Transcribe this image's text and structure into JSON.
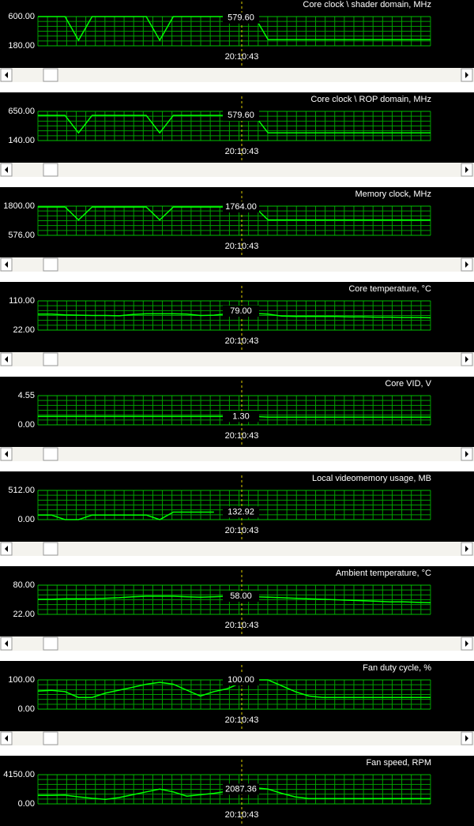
{
  "chart_data": [
    {
      "type": "line",
      "title": "Core clock \\ shader domain, MHz",
      "ylim": [
        180,
        600
      ],
      "yticks": [
        {
          "value": 180,
          "label": "180.00"
        },
        {
          "value": 600,
          "label": "600.00"
        }
      ],
      "time": "20:10:43",
      "cursor_value": {
        "value": 579.6,
        "label": "579.60"
      },
      "color": "#00ff00",
      "values": [
        600,
        600,
        600,
        260,
        600,
        600,
        600,
        600,
        600,
        260,
        600,
        600,
        600,
        600,
        600,
        600,
        600,
        270,
        270,
        270,
        270,
        270,
        270,
        270,
        270,
        270,
        270,
        270,
        270,
        270
      ]
    },
    {
      "type": "line",
      "title": "Core clock \\ ROP domain, MHz",
      "ylim": [
        140,
        650
      ],
      "yticks": [
        {
          "value": 140,
          "label": "140.00"
        },
        {
          "value": 650,
          "label": "650.00"
        }
      ],
      "time": "20:10:43",
      "cursor_value": {
        "value": 579.6,
        "label": "579.60"
      },
      "color": "#00ff00",
      "values": [
        580,
        580,
        580,
        274,
        580,
        580,
        580,
        580,
        580,
        274,
        580,
        580,
        580,
        580,
        580,
        580,
        580,
        274,
        274,
        274,
        274,
        274,
        274,
        274,
        274,
        274,
        274,
        274,
        274,
        274
      ]
    },
    {
      "type": "line",
      "title": "Memory clock, MHz",
      "ylim": [
        576,
        1800
      ],
      "yticks": [
        {
          "value": 576,
          "label": "576.00"
        },
        {
          "value": 1800,
          "label": "1800.00"
        }
      ],
      "time": "20:10:43",
      "cursor_value": {
        "value": 1764,
        "label": "1764.00"
      },
      "color": "#00ff00",
      "values": [
        1764,
        1764,
        1764,
        1220,
        1764,
        1764,
        1764,
        1764,
        1764,
        1220,
        1764,
        1764,
        1764,
        1764,
        1764,
        1764,
        1764,
        1220,
        1220,
        1220,
        1220,
        1220,
        1220,
        1220,
        1220,
        1220,
        1220,
        1220,
        1220,
        1220
      ]
    },
    {
      "type": "line",
      "title": "Core temperature, °C",
      "ylim": [
        22,
        110
      ],
      "yticks": [
        {
          "value": 22,
          "label": "22.00"
        },
        {
          "value": 110,
          "label": "110.00"
        }
      ],
      "time": "20:10:43",
      "cursor_value": {
        "value": 79,
        "label": "79.00"
      },
      "color": "#00ff00",
      "values": [
        70,
        70,
        68,
        67,
        66,
        66,
        65,
        69,
        71,
        71,
        71,
        70,
        66,
        67,
        71,
        72,
        72,
        70,
        64,
        63,
        63,
        63,
        63,
        62,
        62,
        61,
        61,
        60,
        60,
        59
      ]
    },
    {
      "type": "line",
      "title": "Core VID, V",
      "ylim": [
        0,
        4.55
      ],
      "yticks": [
        {
          "value": 0,
          "label": "0.00"
        },
        {
          "value": 4.55,
          "label": "4.55"
        }
      ],
      "time": "20:10:43",
      "cursor_value": {
        "value": 1.3,
        "label": "1.30"
      },
      "color": "#00ff00",
      "values": [
        1.3,
        1.3,
        1.3,
        1.3,
        1.3,
        1.3,
        1.3,
        1.3,
        1.3,
        1.3,
        1.3,
        1.3,
        1.3,
        1.3,
        1.3,
        1.3,
        1.3,
        1.2,
        1.2,
        1.2,
        1.2,
        1.2,
        1.2,
        1.2,
        1.2,
        1.2,
        1.2,
        1.2,
        1.2,
        1.2
      ]
    },
    {
      "type": "line",
      "title": "Local videomemory usage, MB",
      "ylim": [
        0,
        512
      ],
      "yticks": [
        {
          "value": 0,
          "label": "0.00"
        },
        {
          "value": 512,
          "label": "512.00"
        }
      ],
      "time": "20:10:43",
      "cursor_value": {
        "value": 132.92,
        "label": "132.92"
      },
      "color": "#00ff00",
      "values": [
        80,
        80,
        0,
        0,
        80,
        80,
        80,
        80,
        80,
        0,
        132,
        132,
        132,
        132,
        null,
        null,
        null,
        null,
        null,
        null,
        null,
        null,
        null,
        null,
        null,
        null,
        null,
        null,
        null,
        null
      ]
    },
    {
      "type": "line",
      "title": "Ambient temperature, °C",
      "ylim": [
        22,
        80
      ],
      "yticks": [
        {
          "value": 22,
          "label": "22.00"
        },
        {
          "value": 80,
          "label": "80.00"
        }
      ],
      "time": "20:10:43",
      "cursor_value": {
        "value": 58,
        "label": "58.00"
      },
      "color": "#00ff00",
      "values": [
        52,
        52,
        53,
        53,
        53,
        54,
        55,
        57,
        58,
        58,
        58,
        57,
        56,
        57,
        58,
        58,
        57,
        56,
        55,
        54,
        53,
        52,
        51,
        50,
        49,
        48,
        47,
        47,
        46,
        45
      ]
    },
    {
      "type": "line",
      "title": "Fan duty cycle, %",
      "ylim": [
        0,
        100
      ],
      "yticks": [
        {
          "value": 0,
          "label": "0.00"
        },
        {
          "value": 100,
          "label": "100.00"
        }
      ],
      "time": "20:10:43",
      "cursor_value": {
        "value": 100,
        "label": "100.00"
      },
      "color": "#00ff00",
      "values": [
        62,
        64,
        60,
        40,
        40,
        55,
        65,
        75,
        85,
        92,
        85,
        65,
        45,
        60,
        70,
        90,
        100,
        100,
        80,
        60,
        45,
        40,
        40,
        40,
        40,
        40,
        40,
        40,
        40,
        40
      ]
    },
    {
      "type": "line",
      "title": "Fan speed, RPM",
      "ylim": [
        0,
        4150
      ],
      "yticks": [
        {
          "value": 0,
          "label": "0.00"
        },
        {
          "value": 4150,
          "label": "4150.00"
        }
      ],
      "time": "20:10:43",
      "cursor_value": {
        "value": 2087.36,
        "label": "2087.36"
      },
      "color": "#00ff00",
      "values": [
        1200,
        1200,
        1250,
        1000,
        800,
        650,
        900,
        1300,
        1700,
        2100,
        1700,
        1100,
        1300,
        1500,
        1800,
        2087,
        2300,
        2100,
        1500,
        1000,
        760,
        760,
        760,
        760,
        760,
        760,
        760,
        760,
        760,
        760
      ]
    }
  ]
}
